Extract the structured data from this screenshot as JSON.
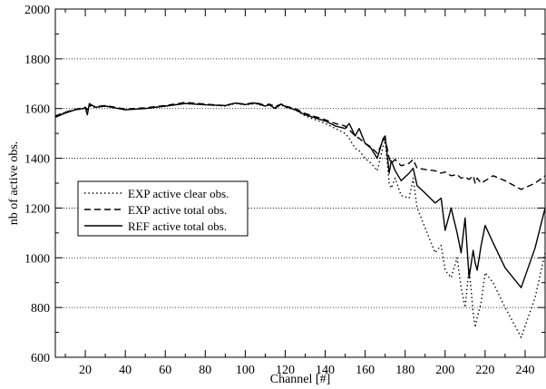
{
  "chart_data": {
    "type": "line",
    "xlabel": "Channel [#]",
    "ylabel": "nb of active obs.",
    "xlim": [
      5,
      250
    ],
    "ylim": [
      600,
      2000
    ],
    "xticks": [
      20,
      40,
      60,
      80,
      100,
      120,
      140,
      160,
      180,
      200,
      220,
      240
    ],
    "yticks": [
      600,
      800,
      1000,
      1200,
      1400,
      1600,
      1800,
      2000
    ],
    "grid": "horizontal-dotted",
    "legend_position": "center-left",
    "series": [
      {
        "name": "EXP active clear obs.",
        "style": "dotted",
        "color": "#000000",
        "x": [
          5,
          10,
          15,
          20,
          21,
          22,
          25,
          30,
          40,
          50,
          60,
          70,
          80,
          90,
          95,
          100,
          105,
          110,
          112,
          115,
          118,
          120,
          125,
          130,
          140,
          145,
          150,
          152,
          155,
          157,
          160,
          163,
          166,
          169,
          170,
          172,
          173,
          175,
          178,
          182,
          184,
          186,
          190,
          195,
          198,
          200,
          203,
          206,
          208,
          210,
          212,
          214,
          215,
          216,
          218,
          220,
          224,
          230,
          238,
          245,
          250
        ],
        "y": [
          1570,
          1585,
          1595,
          1600,
          1590,
          1610,
          1605,
          1610,
          1595,
          1600,
          1610,
          1620,
          1615,
          1610,
          1620,
          1615,
          1620,
          1610,
          1615,
          1605,
          1615,
          1605,
          1595,
          1570,
          1540,
          1520,
          1500,
          1480,
          1440,
          1430,
          1400,
          1380,
          1350,
          1450,
          1470,
          1300,
          1280,
          1320,
          1250,
          1240,
          1320,
          1200,
          1120,
          1020,
          1050,
          950,
          920,
          1000,
          880,
          800,
          960,
          780,
          720,
          760,
          820,
          940,
          900,
          800,
          680,
          840,
          1020
        ]
      },
      {
        "name": "EXP active total obs.",
        "style": "dashed",
        "color": "#000000",
        "x": [
          5,
          10,
          15,
          20,
          21,
          22,
          25,
          30,
          40,
          50,
          60,
          70,
          80,
          90,
          95,
          100,
          105,
          110,
          112,
          115,
          118,
          120,
          125,
          130,
          140,
          145,
          150,
          152,
          155,
          157,
          160,
          163,
          166,
          169,
          170,
          172,
          173,
          175,
          178,
          182,
          184,
          186,
          190,
          195,
          198,
          200,
          203,
          206,
          208,
          210,
          212,
          214,
          215,
          216,
          218,
          220,
          224,
          230,
          238,
          245,
          250
        ],
        "y": [
          1570,
          1585,
          1597,
          1605,
          1595,
          1615,
          1608,
          1612,
          1598,
          1603,
          1612,
          1625,
          1618,
          1612,
          1622,
          1618,
          1624,
          1613,
          1618,
          1608,
          1618,
          1610,
          1600,
          1580,
          1555,
          1540,
          1530,
          1515,
          1490,
          1480,
          1460,
          1445,
          1420,
          1470,
          1480,
          1400,
          1380,
          1395,
          1370,
          1380,
          1395,
          1360,
          1355,
          1350,
          1340,
          1345,
          1330,
          1335,
          1320,
          1325,
          1315,
          1330,
          1300,
          1320,
          1300,
          1310,
          1330,
          1310,
          1275,
          1300,
          1330
        ]
      },
      {
        "name": "REF active total obs.",
        "style": "solid",
        "color": "#000000",
        "x": [
          5,
          10,
          15,
          20,
          21,
          22,
          25,
          30,
          40,
          50,
          60,
          70,
          80,
          90,
          95,
          100,
          105,
          110,
          112,
          115,
          118,
          120,
          125,
          130,
          140,
          145,
          150,
          152,
          155,
          157,
          160,
          163,
          166,
          169,
          170,
          172,
          173,
          175,
          178,
          182,
          184,
          186,
          190,
          195,
          198,
          200,
          203,
          206,
          208,
          210,
          212,
          214,
          215,
          216,
          218,
          220,
          224,
          230,
          238,
          245,
          250
        ],
        "y": [
          1565,
          1582,
          1595,
          1602,
          1575,
          1620,
          1605,
          1610,
          1595,
          1600,
          1610,
          1620,
          1615,
          1612,
          1622,
          1616,
          1622,
          1610,
          1615,
          1600,
          1618,
          1608,
          1595,
          1575,
          1550,
          1530,
          1520,
          1540,
          1490,
          1520,
          1460,
          1440,
          1400,
          1480,
          1490,
          1340,
          1390,
          1350,
          1310,
          1340,
          1360,
          1290,
          1260,
          1220,
          1240,
          1110,
          1200,
          1100,
          1020,
          1160,
          920,
          1030,
          980,
          950,
          1050,
          1130,
          1060,
          960,
          880,
          1040,
          1200
        ]
      }
    ]
  }
}
